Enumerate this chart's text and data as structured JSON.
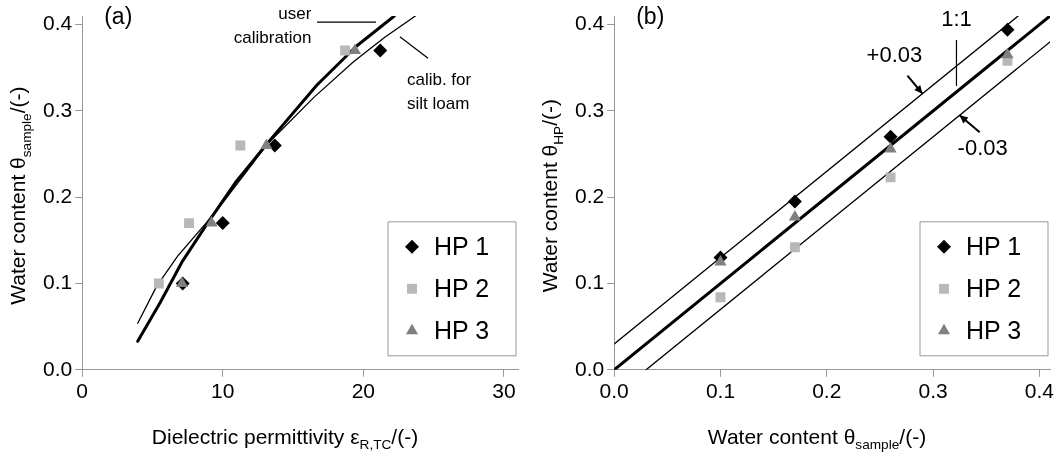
{
  "chart_data": [
    {
      "type": "scatter",
      "xlabel": "Dielectric permittivity ε$_{R,TC}$/(-)",
      "ylabel": "Water content θ$_{sample}$/(-)",
      "xlim": [
        0,
        31
      ],
      "xticks": [
        0,
        10,
        20,
        30
      ],
      "ylim": [
        0,
        0.41
      ],
      "yticks": [
        {
          "value": 0,
          "label": "0.0"
        },
        0.1,
        0.2,
        0.3,
        0.4
      ],
      "grid": false,
      "legend": "bottom right",
      "annotations": [
        "(a)",
        "user calibration",
        "calib. for silt loam"
      ],
      "series": [
        {
          "name": "HP 1",
          "color": "#000000",
          "marker": "diamond",
          "x": [
            7.15,
            10.0,
            13.7,
            21.2
          ],
          "values": [
            0.1,
            0.17,
            0.26,
            0.37
          ]
        },
        {
          "name": "HP 2",
          "color": "#b8b8b8",
          "marker": "square",
          "x": [
            5.45,
            7.6,
            11.25,
            18.7
          ],
          "values": [
            0.1,
            0.17,
            0.26,
            0.37
          ]
        },
        {
          "name": "HP 3",
          "color": "#808080",
          "marker": "triangle",
          "x": [
            7.1,
            9.2,
            13.1,
            19.4
          ],
          "values": [
            0.1,
            0.17,
            0.26,
            0.37
          ]
        },
        {
          "type": "line",
          "color": "#000000",
          "marker": "none",
          "x": [
            3.95,
            5.55,
            7.1,
            9.0,
            10.9,
            13.3,
            16.7,
            19.5,
            22.2
          ],
          "values": [
            0.033,
            0.078,
            0.125,
            0.172,
            0.217,
            0.265,
            0.33,
            0.375,
            0.41
          ]
        },
        {
          "type": "line",
          "color": "#000000",
          "marker": "none",
          "x": [
            3.95,
            5.3,
            6.8,
            9.5,
            13.2,
            16.5,
            19.3,
            21.5,
            23.7
          ],
          "values": [
            0.054,
            0.097,
            0.132,
            0.183,
            0.262,
            0.316,
            0.357,
            0.385,
            0.41
          ]
        }
      ]
    },
    {
      "type": "scatter",
      "xlabel": "Water content θ$_{sample}$/(-)",
      "ylabel": "Water content θ$_{HP}$/(-)",
      "xlim": [
        0,
        0.41
      ],
      "xticks": [
        {
          "value": 0,
          "label": "0.0"
        },
        0.1,
        0.2,
        0.3,
        0.4
      ],
      "ylim": [
        0,
        0.41
      ],
      "yticks": [
        {
          "value": 0,
          "label": "0.0"
        },
        0.1,
        0.2,
        0.3,
        0.4
      ],
      "grid": false,
      "legend": "bottom right",
      "x": [
        0.1,
        0.17,
        0.26,
        0.37
      ],
      "annotations": [
        "(b)",
        {
          "text": "1:1",
          "x": 0.322,
          "y": 0.329
        },
        {
          "text": "+0.03",
          "x": 0.29,
          "y": 0.32
        },
        {
          "text": "-0.03",
          "x": 0.325,
          "y": 0.295
        }
      ],
      "series": [
        {
          "name": "HP 1",
          "color": "#000000",
          "marker": "diamond",
          "values": [
            0.13,
            0.195,
            0.27,
            0.394
          ]
        },
        {
          "name": "HP 2",
          "color": "#b8b8b8",
          "marker": "square",
          "values": [
            0.084,
            0.142,
            0.223,
            0.358
          ]
        },
        {
          "name": "HP 3",
          "color": "#808080",
          "marker": "triangle",
          "values": [
            0.125,
            0.177,
            0.256,
            0.365
          ]
        },
        {
          "type": "line",
          "color": "#000000",
          "marker": "none",
          "x": [
            0,
            0.41
          ],
          "values": [
            0,
            0.41
          ]
        },
        {
          "type": "line",
          "color": "#000000",
          "marker": "none",
          "x": [
            0,
            0.38
          ],
          "values": [
            0.03,
            0.41
          ]
        },
        {
          "type": "line",
          "color": "#000000",
          "marker": "none",
          "x": [
            0.03,
            0.41
          ],
          "values": [
            0,
            0.38
          ]
        }
      ]
    }
  ]
}
